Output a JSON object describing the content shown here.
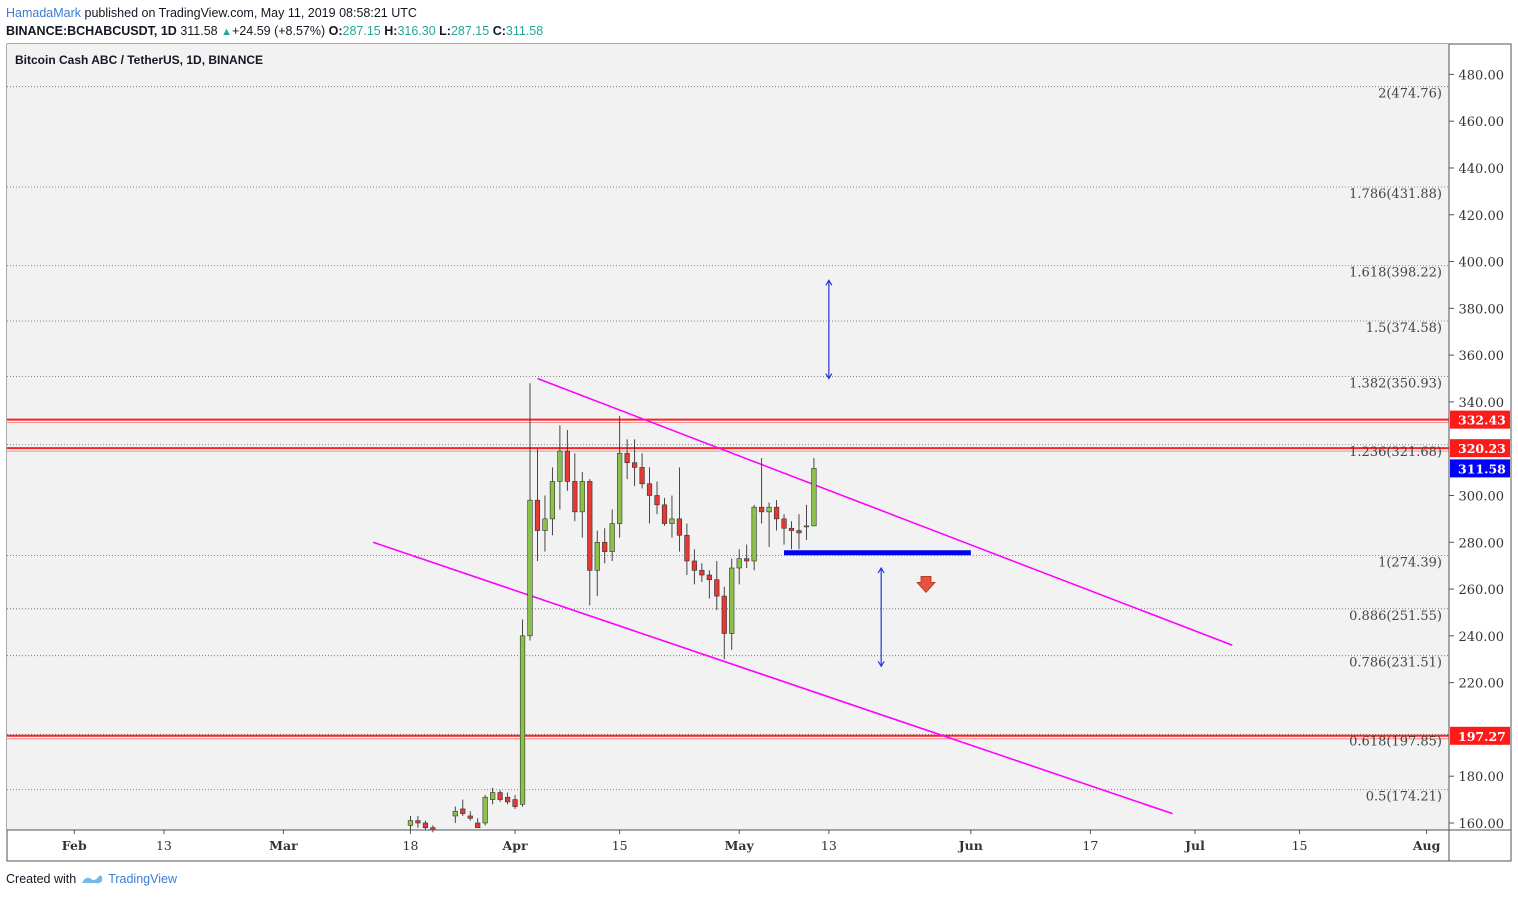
{
  "header": {
    "user": "HamadaMark",
    "published": " published on TradingView.com, May 11, 2019 08:58:21 UTC",
    "symbol": "BINANCE:BCHABCUSDT, 1D",
    "last": "311.58",
    "change": "+24.59 (+8.57%)",
    "o_label": "O:",
    "o": "287.15",
    "h_label": "H:",
    "h": "316.30",
    "l_label": "L:",
    "l": "287.15",
    "c_label": "C:",
    "c": "311.58"
  },
  "footer": {
    "created": "Created with",
    "brand": "TradingView"
  },
  "colors": {
    "bull": "#8bc34a",
    "bear": "#e53935",
    "channel": "#ff00ff",
    "support": "#ff2222",
    "zone": "#0000ee",
    "arrow": "#2233dd",
    "plot_bg": "#f2f2f2"
  },
  "chart_data": {
    "type": "candlestick",
    "title": "Bitcoin Cash ABC / TetherUS, 1D, BINANCE",
    "ylim": [
      157,
      493
    ],
    "x_range": [
      "2019-01-23",
      "2019-08-04"
    ],
    "y_ticks": [
      "480.00",
      "460.00",
      "440.00",
      "420.00",
      "400.00",
      "380.00",
      "360.00",
      "340.00",
      "300.00",
      "280.00",
      "260.00",
      "240.00",
      "220.00",
      "180.00",
      "160.00"
    ],
    "x_ticks": [
      {
        "label": "Feb",
        "date": "2019-02-01",
        "bold": true
      },
      {
        "label": "13",
        "date": "2019-02-13",
        "bold": false
      },
      {
        "label": "Mar",
        "date": "2019-03-01",
        "bold": true
      },
      {
        "label": "18",
        "date": "2019-03-18",
        "bold": false
      },
      {
        "label": "Apr",
        "date": "2019-04-01",
        "bold": true
      },
      {
        "label": "15",
        "date": "2019-04-15",
        "bold": false
      },
      {
        "label": "May",
        "date": "2019-05-01",
        "bold": true
      },
      {
        "label": "13",
        "date": "2019-05-13",
        "bold": false
      },
      {
        "label": "Jun",
        "date": "2019-06-01",
        "bold": true
      },
      {
        "label": "17",
        "date": "2019-06-17",
        "bold": false
      },
      {
        "label": "Jul",
        "date": "2019-07-01",
        "bold": true
      },
      {
        "label": "15",
        "date": "2019-07-15",
        "bold": false
      },
      {
        "label": "Aug",
        "date": "2019-08-01",
        "bold": true
      }
    ],
    "fib_levels": [
      {
        "label": "2(474.76)",
        "value": 474.76
      },
      {
        "label": "1.786(431.88)",
        "value": 431.88
      },
      {
        "label": "1.618(398.22)",
        "value": 398.22
      },
      {
        "label": "1.5(374.58)",
        "value": 374.58
      },
      {
        "label": "1.382(350.93)",
        "value": 350.93
      },
      {
        "label": "1.236(321.68)",
        "value": 321.68
      },
      {
        "label": "1(274.39)",
        "value": 274.39
      },
      {
        "label": "0.886(251.55)",
        "value": 251.55
      },
      {
        "label": "0.786(231.51)",
        "value": 231.51
      },
      {
        "label": "0.618(197.85)",
        "value": 197.85
      },
      {
        "label": "0.5(174.21)",
        "value": 174.21
      }
    ],
    "horizontal_lines": [
      {
        "value": 332.43,
        "label": "332.43"
      },
      {
        "value": 320.23,
        "label": "320.23"
      },
      {
        "value": 197.27,
        "label": "197.27"
      }
    ],
    "last_price": {
      "value": 311.58,
      "label": "311.58"
    },
    "support_zone": {
      "start": "2019-05-07",
      "end": "2019-06-01",
      "value": 275.5
    },
    "channel_upper": [
      [
        "2019-04-04",
        350
      ],
      [
        "2019-07-06",
        236
      ]
    ],
    "channel_lower": [
      [
        "2019-03-13",
        280
      ],
      [
        "2019-06-28",
        164
      ]
    ],
    "projection_up": {
      "date": "2019-05-13",
      "from": 350,
      "to": 392
    },
    "projection_down": {
      "date": "2019-05-20",
      "from": 269,
      "to": 227
    },
    "down_arrow": {
      "date": "2019-05-26",
      "value": 262
    },
    "candles": [
      [
        "2019-03-18",
        159,
        163,
        157,
        161
      ],
      [
        "2019-03-19",
        161,
        163,
        158,
        160
      ],
      [
        "2019-03-20",
        160,
        161,
        157,
        158
      ],
      [
        "2019-03-21",
        158,
        159,
        156,
        157
      ],
      [
        "2019-03-24",
        163,
        167,
        160,
        165
      ],
      [
        "2019-03-25",
        166,
        170,
        163,
        164
      ],
      [
        "2019-03-26",
        163,
        165,
        161,
        162
      ],
      [
        "2019-03-27",
        160,
        162,
        158,
        158
      ],
      [
        "2019-03-28",
        160,
        172,
        159,
        171
      ],
      [
        "2019-03-29",
        170,
        175,
        168,
        173
      ],
      [
        "2019-03-30",
        173,
        174,
        169,
        170
      ],
      [
        "2019-03-31",
        171,
        173,
        168,
        169
      ],
      [
        "2019-04-01",
        170,
        172,
        166,
        167
      ],
      [
        "2019-04-02",
        168,
        247,
        167,
        240
      ],
      [
        "2019-04-03",
        240,
        348,
        238,
        298
      ],
      [
        "2019-04-04",
        298,
        320,
        272,
        285
      ],
      [
        "2019-04-05",
        285,
        300,
        276,
        290
      ],
      [
        "2019-04-06",
        290,
        312,
        283,
        306
      ],
      [
        "2019-04-07",
        306,
        330,
        294,
        319
      ],
      [
        "2019-04-08",
        319,
        328,
        302,
        306
      ],
      [
        "2019-04-09",
        306,
        318,
        289,
        293
      ],
      [
        "2019-04-10",
        293,
        310,
        282,
        306
      ],
      [
        "2019-04-11",
        306,
        307,
        253,
        268
      ],
      [
        "2019-04-12",
        268,
        285,
        257,
        280
      ],
      [
        "2019-04-13",
        280,
        286,
        271,
        276
      ],
      [
        "2019-04-14",
        276,
        294,
        272,
        288
      ],
      [
        "2019-04-15",
        288,
        334,
        282,
        318
      ],
      [
        "2019-04-16",
        318,
        324,
        307,
        314
      ],
      [
        "2019-04-17",
        314,
        324,
        304,
        312
      ],
      [
        "2019-04-18",
        312,
        318,
        303,
        305
      ],
      [
        "2019-04-19",
        305,
        312,
        288,
        300
      ],
      [
        "2019-04-20",
        300,
        306,
        292,
        296
      ],
      [
        "2019-04-21",
        296,
        299,
        287,
        288
      ],
      [
        "2019-04-22",
        288,
        300,
        282,
        290
      ],
      [
        "2019-04-23",
        290,
        312,
        276,
        283
      ],
      [
        "2019-04-24",
        283,
        288,
        266,
        272
      ],
      [
        "2019-04-25",
        272,
        277,
        262,
        268
      ],
      [
        "2019-04-26",
        268,
        271,
        263,
        266
      ],
      [
        "2019-04-27",
        266,
        268,
        256,
        264
      ],
      [
        "2019-04-28",
        264,
        272,
        251,
        257
      ],
      [
        "2019-04-29",
        257,
        261,
        230,
        241
      ],
      [
        "2019-04-30",
        241,
        273,
        234,
        269
      ],
      [
        "2019-05-01",
        269,
        277,
        262,
        273
      ],
      [
        "2019-05-02",
        273,
        279,
        269,
        272
      ],
      [
        "2019-05-03",
        272,
        296,
        268,
        295
      ],
      [
        "2019-05-04",
        295,
        316,
        288,
        293
      ],
      [
        "2019-05-05",
        293,
        297,
        278,
        295
      ],
      [
        "2019-05-06",
        295,
        298,
        285,
        290
      ],
      [
        "2019-05-07",
        290,
        292,
        279,
        286
      ],
      [
        "2019-05-08",
        286,
        289,
        277,
        285
      ],
      [
        "2019-05-09",
        285,
        292,
        277,
        284
      ],
      [
        "2019-05-10",
        287,
        296,
        281,
        287
      ],
      [
        "2019-05-11",
        287,
        316,
        287,
        311.58
      ]
    ]
  }
}
